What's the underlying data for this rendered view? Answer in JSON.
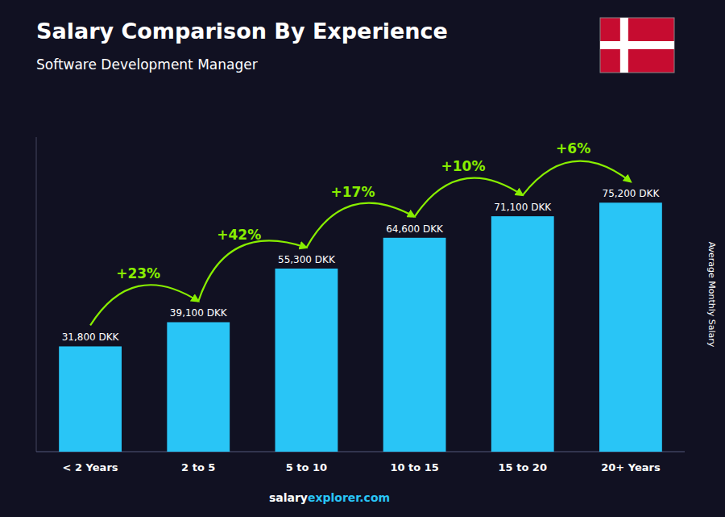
{
  "chart_data": {
    "type": "bar",
    "title": "Salary Comparison By Experience",
    "subtitle": "Software Development Manager",
    "ylabel": "Average Monthly Salary",
    "categories": [
      "< 2 Years",
      "2 to 5",
      "5 to 10",
      "10 to 15",
      "15 to 20",
      "20+ Years"
    ],
    "values": [
      31800,
      39100,
      55300,
      64600,
      71100,
      75200
    ],
    "value_labels": [
      "31,800 DKK",
      "39,100 DKK",
      "55,300 DKK",
      "64,600 DKK",
      "71,100 DKK",
      "75,200 DKK"
    ],
    "color": "#29c5f6",
    "data_labels": true,
    "tick_labels": "x",
    "grid": false,
    "ylim": [
      0,
      95000
    ],
    "yticks": [],
    "annotations": [
      {
        "text": "+23%",
        "from": "< 2 Years",
        "to": "2 to 5",
        "color": "#88ee00"
      },
      {
        "text": "+42%",
        "from": "2 to 5",
        "to": "5 to 10",
        "color": "#88ee00"
      },
      {
        "text": "+17%",
        "from": "5 to 10",
        "to": "10 to 15",
        "color": "#88ee00"
      },
      {
        "text": "+10%",
        "from": "10 to 15",
        "to": "15 to 20",
        "color": "#88ee00"
      },
      {
        "text": "+6%",
        "from": "15 to 20",
        "to": "20+ Years",
        "color": "#88ee00"
      }
    ],
    "footer": [
      "salary",
      "explorer.com"
    ]
  }
}
